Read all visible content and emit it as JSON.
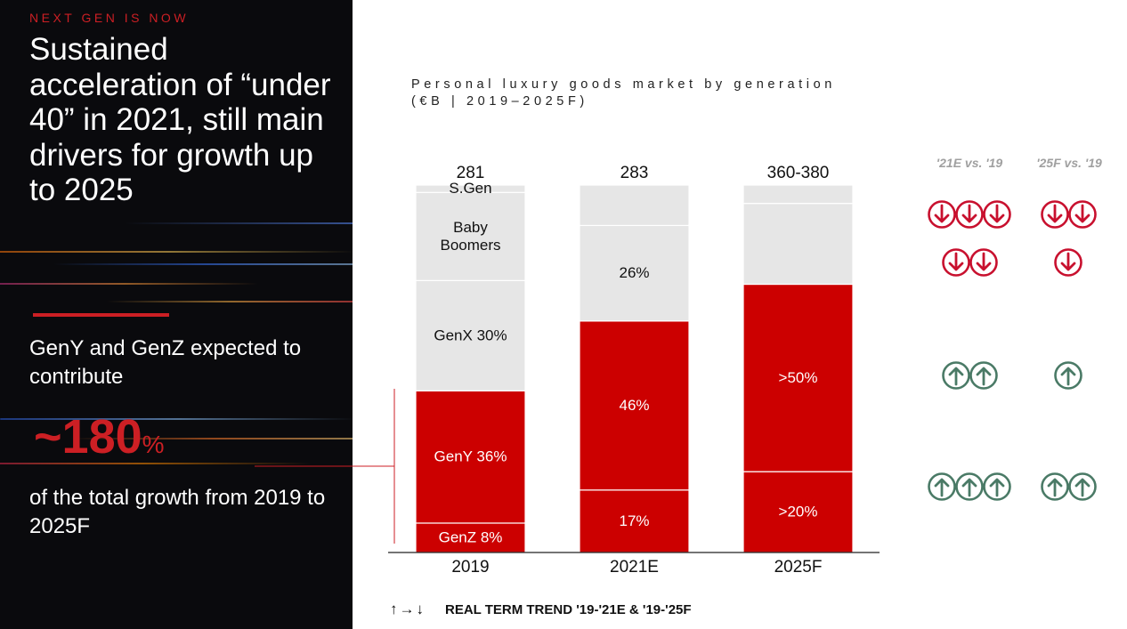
{
  "eyebrow": "NEXT GEN IS NOW",
  "headline": "Sustained acceleration of “under 40” in 2021, still main drivers for growth up to 2025",
  "contrib_text": "GenY and GenZ expected to contribute",
  "big_number": "~180",
  "big_number_unit": "%",
  "growth_text": "of the total growth from 2019 to 2025F",
  "chart_title_line1": "Personal luxury goods market by generation",
  "chart_title_line2": "(€B | 2019–2025F)",
  "chart_data": {
    "type": "bar",
    "stacked": true,
    "normalized": true,
    "categories": [
      "2019",
      "2021E",
      "2025F"
    ],
    "totals": [
      "281",
      "283",
      "360-380"
    ],
    "series": [
      {
        "name": "GenZ",
        "values": [
          8,
          17,
          22
        ],
        "labels": [
          "GenZ 8%",
          "17%",
          ">20%"
        ],
        "color": "#cc0000"
      },
      {
        "name": "GenY",
        "values": [
          36,
          46,
          51
        ],
        "labels": [
          "GenY 36%",
          "46%",
          ">50%"
        ],
        "color": "#cc0000"
      },
      {
        "name": "GenX",
        "values": [
          30,
          26,
          0
        ],
        "labels": [
          "GenX 30%",
          "26%",
          ""
        ],
        "color": "#e6e6e6"
      },
      {
        "name": "Baby Boomers",
        "values": [
          24,
          11,
          22
        ],
        "labels": [
          "Baby Boomers",
          "",
          ""
        ],
        "color": "#e6e6e6"
      },
      {
        "name": "S.Gen",
        "values": [
          2,
          0,
          5
        ],
        "labels": [
          "S.Gen",
          "",
          ""
        ],
        "color": "#e6e6e6"
      }
    ]
  },
  "trend_headers": {
    "h21": "'21E vs. '19",
    "h25": "'25F vs. '19"
  },
  "trends": {
    "boomers_sgen": {
      "h21": {
        "direction": "down",
        "count": 3
      },
      "h25": {
        "direction": "down",
        "count": 2
      }
    },
    "genx": {
      "h21": {
        "direction": "down",
        "count": 2
      },
      "h25": {
        "direction": "down",
        "count": 1
      }
    },
    "geny": {
      "h21": {
        "direction": "up",
        "count": 2
      },
      "h25": {
        "direction": "up",
        "count": 1
      }
    },
    "genz": {
      "h21": {
        "direction": "up",
        "count": 3
      },
      "h25": {
        "direction": "up",
        "count": 2
      }
    }
  },
  "colors": {
    "accent_red": "#cc1f24",
    "bar_red": "#cc0000",
    "bar_grey": "#e6e6e6",
    "down_red": "#c8102e",
    "up_green": "#4a7a66"
  },
  "legend": {
    "symbols": "↑→↓",
    "text": "REAL TERM TREND '19-'21E & '19-'25F"
  }
}
